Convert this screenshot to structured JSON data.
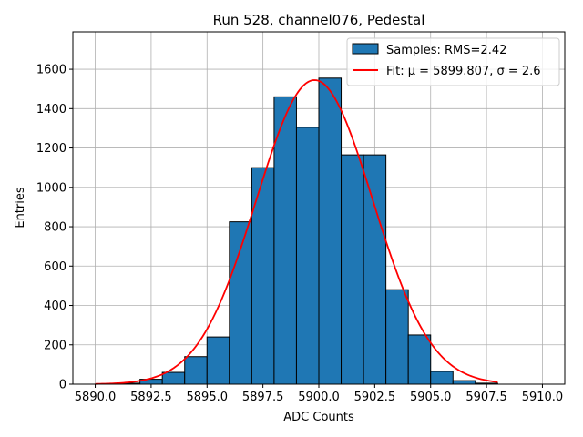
{
  "chart_data": {
    "type": "bar",
    "title": "Run 528, channel076, Pedestal",
    "xlabel": "ADC Counts",
    "ylabel": "Entries",
    "xlim": [
      5889.0,
      5911.0
    ],
    "ylim": [
      0,
      1790
    ],
    "grid": true,
    "x_ticks": [
      5890.0,
      5892.5,
      5895.0,
      5897.5,
      5900.0,
      5902.5,
      5905.0,
      5907.5,
      5910.0
    ],
    "x_tick_labels": [
      "5890.0",
      "5892.5",
      "5895.0",
      "5897.5",
      "5900.0",
      "5902.5",
      "5905.0",
      "5907.5",
      "5910.0"
    ],
    "y_ticks": [
      0,
      200,
      400,
      600,
      800,
      1000,
      1200,
      1400,
      1600
    ],
    "y_tick_labels": [
      "0",
      "200",
      "400",
      "600",
      "800",
      "1000",
      "1200",
      "1400",
      "1600"
    ],
    "bins": [
      {
        "left": 5891,
        "right": 5892,
        "value": 5
      },
      {
        "left": 5892,
        "right": 5893,
        "value": 25
      },
      {
        "left": 5893,
        "right": 5894,
        "value": 60
      },
      {
        "left": 5894,
        "right": 5895,
        "value": 140
      },
      {
        "left": 5895,
        "right": 5896,
        "value": 240
      },
      {
        "left": 5896,
        "right": 5897,
        "value": 825
      },
      {
        "left": 5897,
        "right": 5898,
        "value": 1100
      },
      {
        "left": 5898,
        "right": 5899,
        "value": 1460
      },
      {
        "left": 5899,
        "right": 5900,
        "value": 1305
      },
      {
        "left": 5900,
        "right": 5901,
        "value": 1555
      },
      {
        "left": 5901,
        "right": 5902,
        "value": 1165
      },
      {
        "left": 5902,
        "right": 5903,
        "value": 1165
      },
      {
        "left": 5903,
        "right": 5904,
        "value": 480
      },
      {
        "left": 5904,
        "right": 5905,
        "value": 250
      },
      {
        "left": 5905,
        "right": 5906,
        "value": 65
      },
      {
        "left": 5906,
        "right": 5907,
        "value": 18
      },
      {
        "left": 5907,
        "right": 5908,
        "value": 5
      }
    ],
    "fit": {
      "mu": 5899.807,
      "sigma": 2.6,
      "amplitude": 1545,
      "x_range": [
        5890.0,
        5908.0
      ]
    },
    "legend": {
      "position": "top-right",
      "entries": [
        "Samples: RMS=2.42",
        "Fit: μ = 5899.807, σ = 2.6"
      ]
    },
    "colors": {
      "bar_fill": "#1f77b4",
      "bar_edge": "#000000",
      "fit_line": "#ff0000",
      "grid": "#b0b0b0"
    }
  }
}
